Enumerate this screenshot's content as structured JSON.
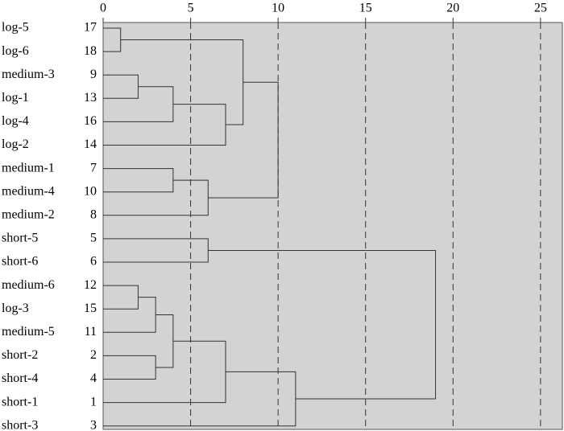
{
  "chart_data": {
    "type": "dendrogram",
    "leaves": [
      {
        "label": "log-5",
        "id": 17
      },
      {
        "label": "log-6",
        "id": 18
      },
      {
        "label": "medium-3",
        "id": 9
      },
      {
        "label": "log-1",
        "id": 13
      },
      {
        "label": "log-4",
        "id": 16
      },
      {
        "label": "log-2",
        "id": 14
      },
      {
        "label": "medium-1",
        "id": 7
      },
      {
        "label": "medium-4",
        "id": 10
      },
      {
        "label": "medium-2",
        "id": 8
      },
      {
        "label": "short-5",
        "id": 5
      },
      {
        "label": "short-6",
        "id": 6
      },
      {
        "label": "medium-6",
        "id": 12
      },
      {
        "label": "log-3",
        "id": 15
      },
      {
        "label": "medium-5",
        "id": 11
      },
      {
        "label": "short-2",
        "id": 2
      },
      {
        "label": "short-4",
        "id": 4
      },
      {
        "label": "short-1",
        "id": 1
      },
      {
        "label": "short-3",
        "id": 3
      }
    ],
    "merges": [
      {
        "children": [
          0,
          1
        ],
        "height": 1
      },
      {
        "children": [
          2,
          3
        ],
        "height": 2
      },
      {
        "children": [
          19,
          4
        ],
        "height": 4
      },
      {
        "children": [
          20,
          5
        ],
        "height": 7
      },
      {
        "children": [
          18,
          21
        ],
        "height": 8
      },
      {
        "children": [
          6,
          7
        ],
        "height": 4
      },
      {
        "children": [
          23,
          8
        ],
        "height": 6
      },
      {
        "children": [
          22,
          24
        ],
        "height": 10
      },
      {
        "children": [
          9,
          10
        ],
        "height": 6
      },
      {
        "children": [
          11,
          12
        ],
        "height": 2
      },
      {
        "children": [
          27,
          13
        ],
        "height": 3
      },
      {
        "children": [
          14,
          15
        ],
        "height": 3
      },
      {
        "children": [
          28,
          29
        ],
        "height": 4
      },
      {
        "children": [
          30,
          16
        ],
        "height": 7
      },
      {
        "children": [
          31,
          17
        ],
        "height": 11
      },
      {
        "children": [
          26,
          32
        ],
        "height": 19
      }
    ],
    "xlim": [
      0,
      26.25
    ],
    "xticks": [
      0,
      5,
      10,
      15,
      20,
      25
    ],
    "grid": true,
    "color": "#333333",
    "background": "#d3d3d3"
  }
}
